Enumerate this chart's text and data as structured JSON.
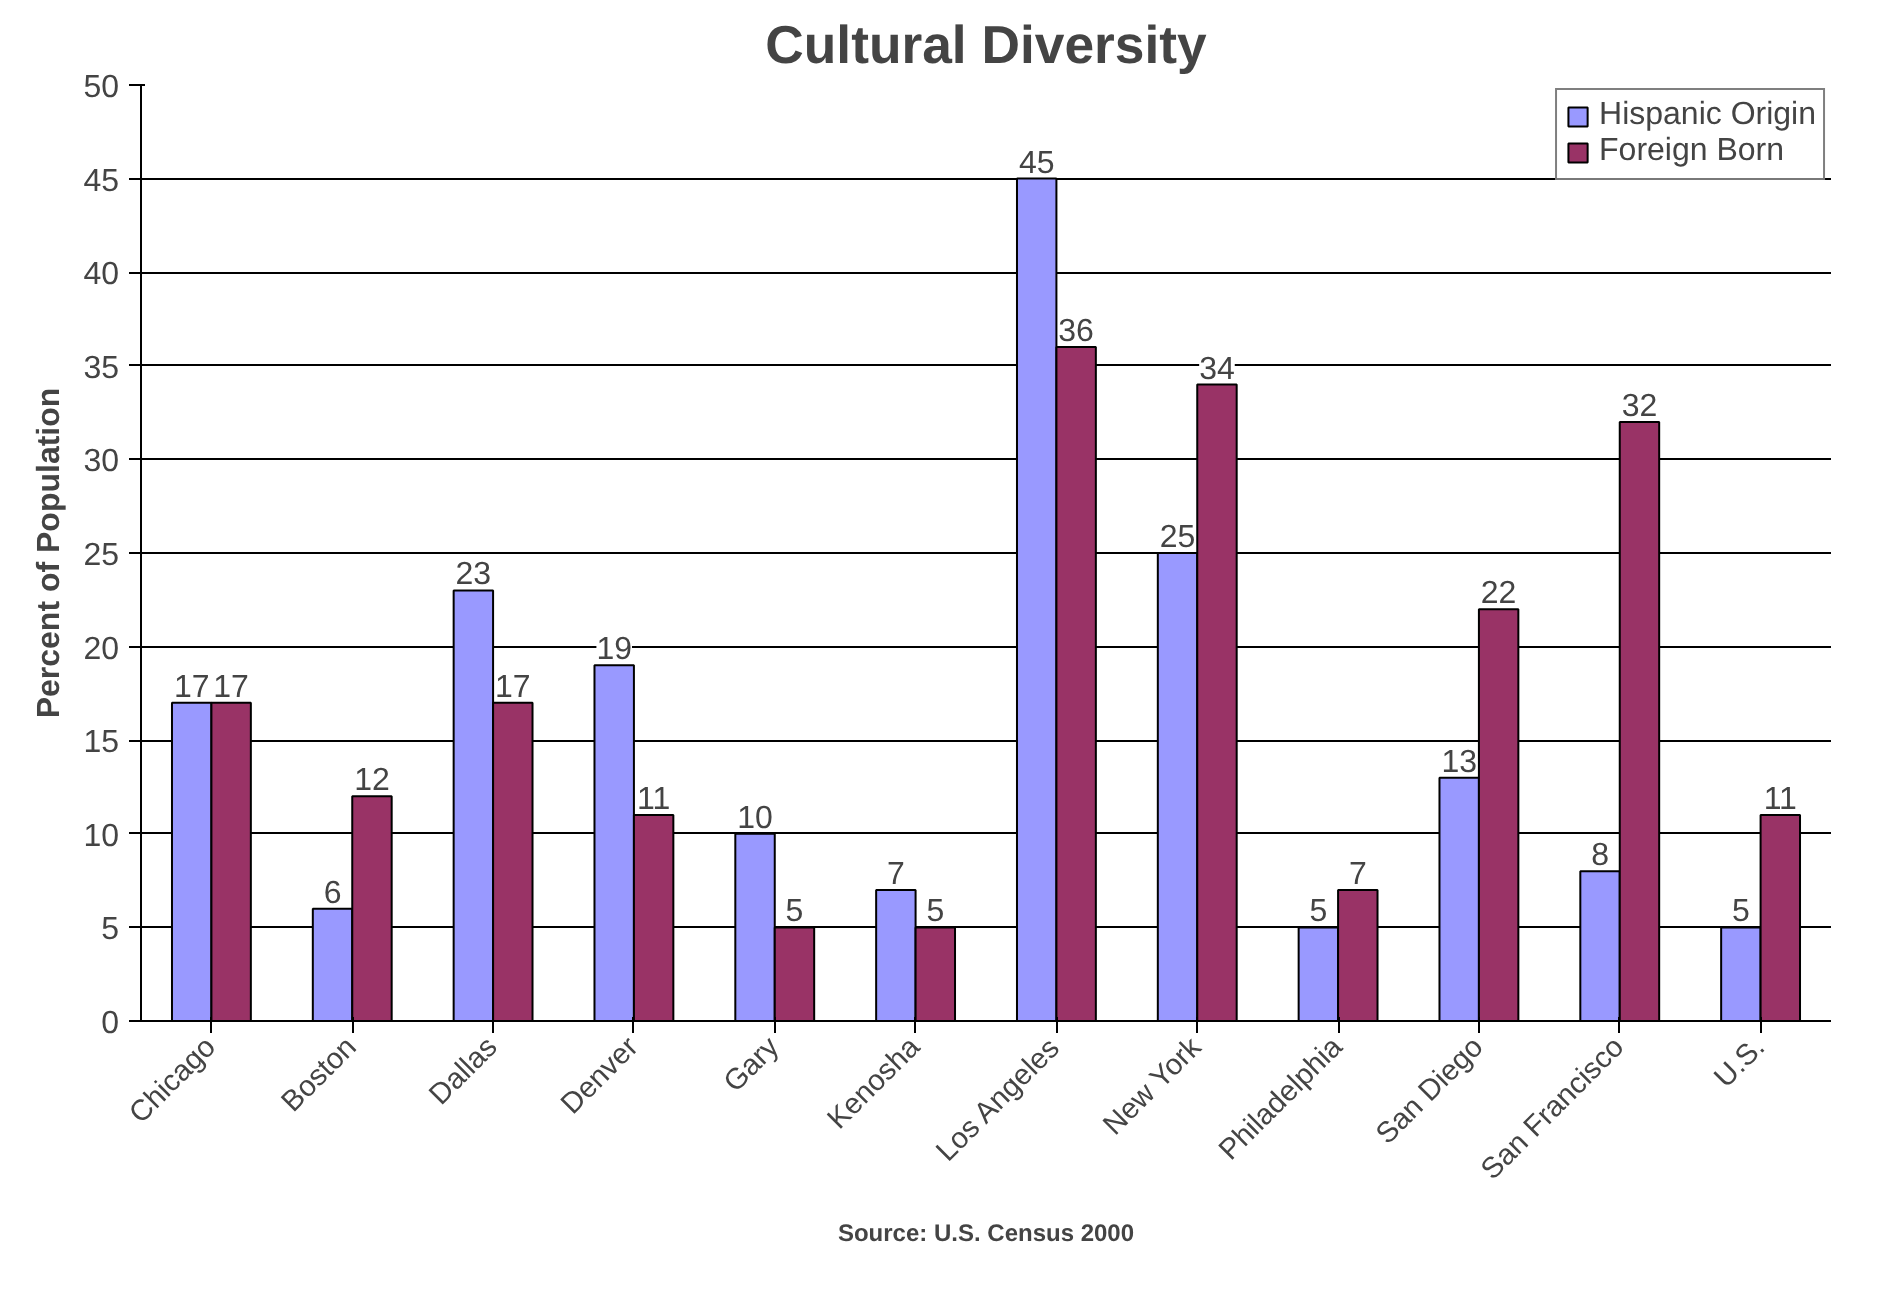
{
  "chart_data": {
    "type": "bar",
    "title": "Cultural Diversity",
    "ylabel": "Percent of Population",
    "categories": [
      "Chicago",
      "Boston",
      "Dallas",
      "Denver",
      "Gary",
      "Kenosha",
      "Los Angeles",
      "New York",
      "Philadelphia",
      "San Diego",
      "San Francisco",
      "U.S."
    ],
    "series": [
      {
        "name": "Hispanic Origin",
        "color": "#9999ff",
        "values": [
          17,
          6,
          23,
          19,
          10,
          7,
          45,
          25,
          5,
          13,
          8,
          5
        ]
      },
      {
        "name": "Foreign Born",
        "color": "#993366",
        "values": [
          17,
          12,
          17,
          11,
          5,
          5,
          36,
          34,
          7,
          22,
          32,
          11
        ]
      }
    ],
    "ylim": [
      0,
      50
    ],
    "yticks": [
      0,
      5,
      10,
      15,
      20,
      25,
      30,
      35,
      40,
      45,
      50
    ],
    "grid": "y",
    "legend": "top right",
    "data_labels": true,
    "annotations": [
      "Source: U.S. Census 2000"
    ]
  }
}
